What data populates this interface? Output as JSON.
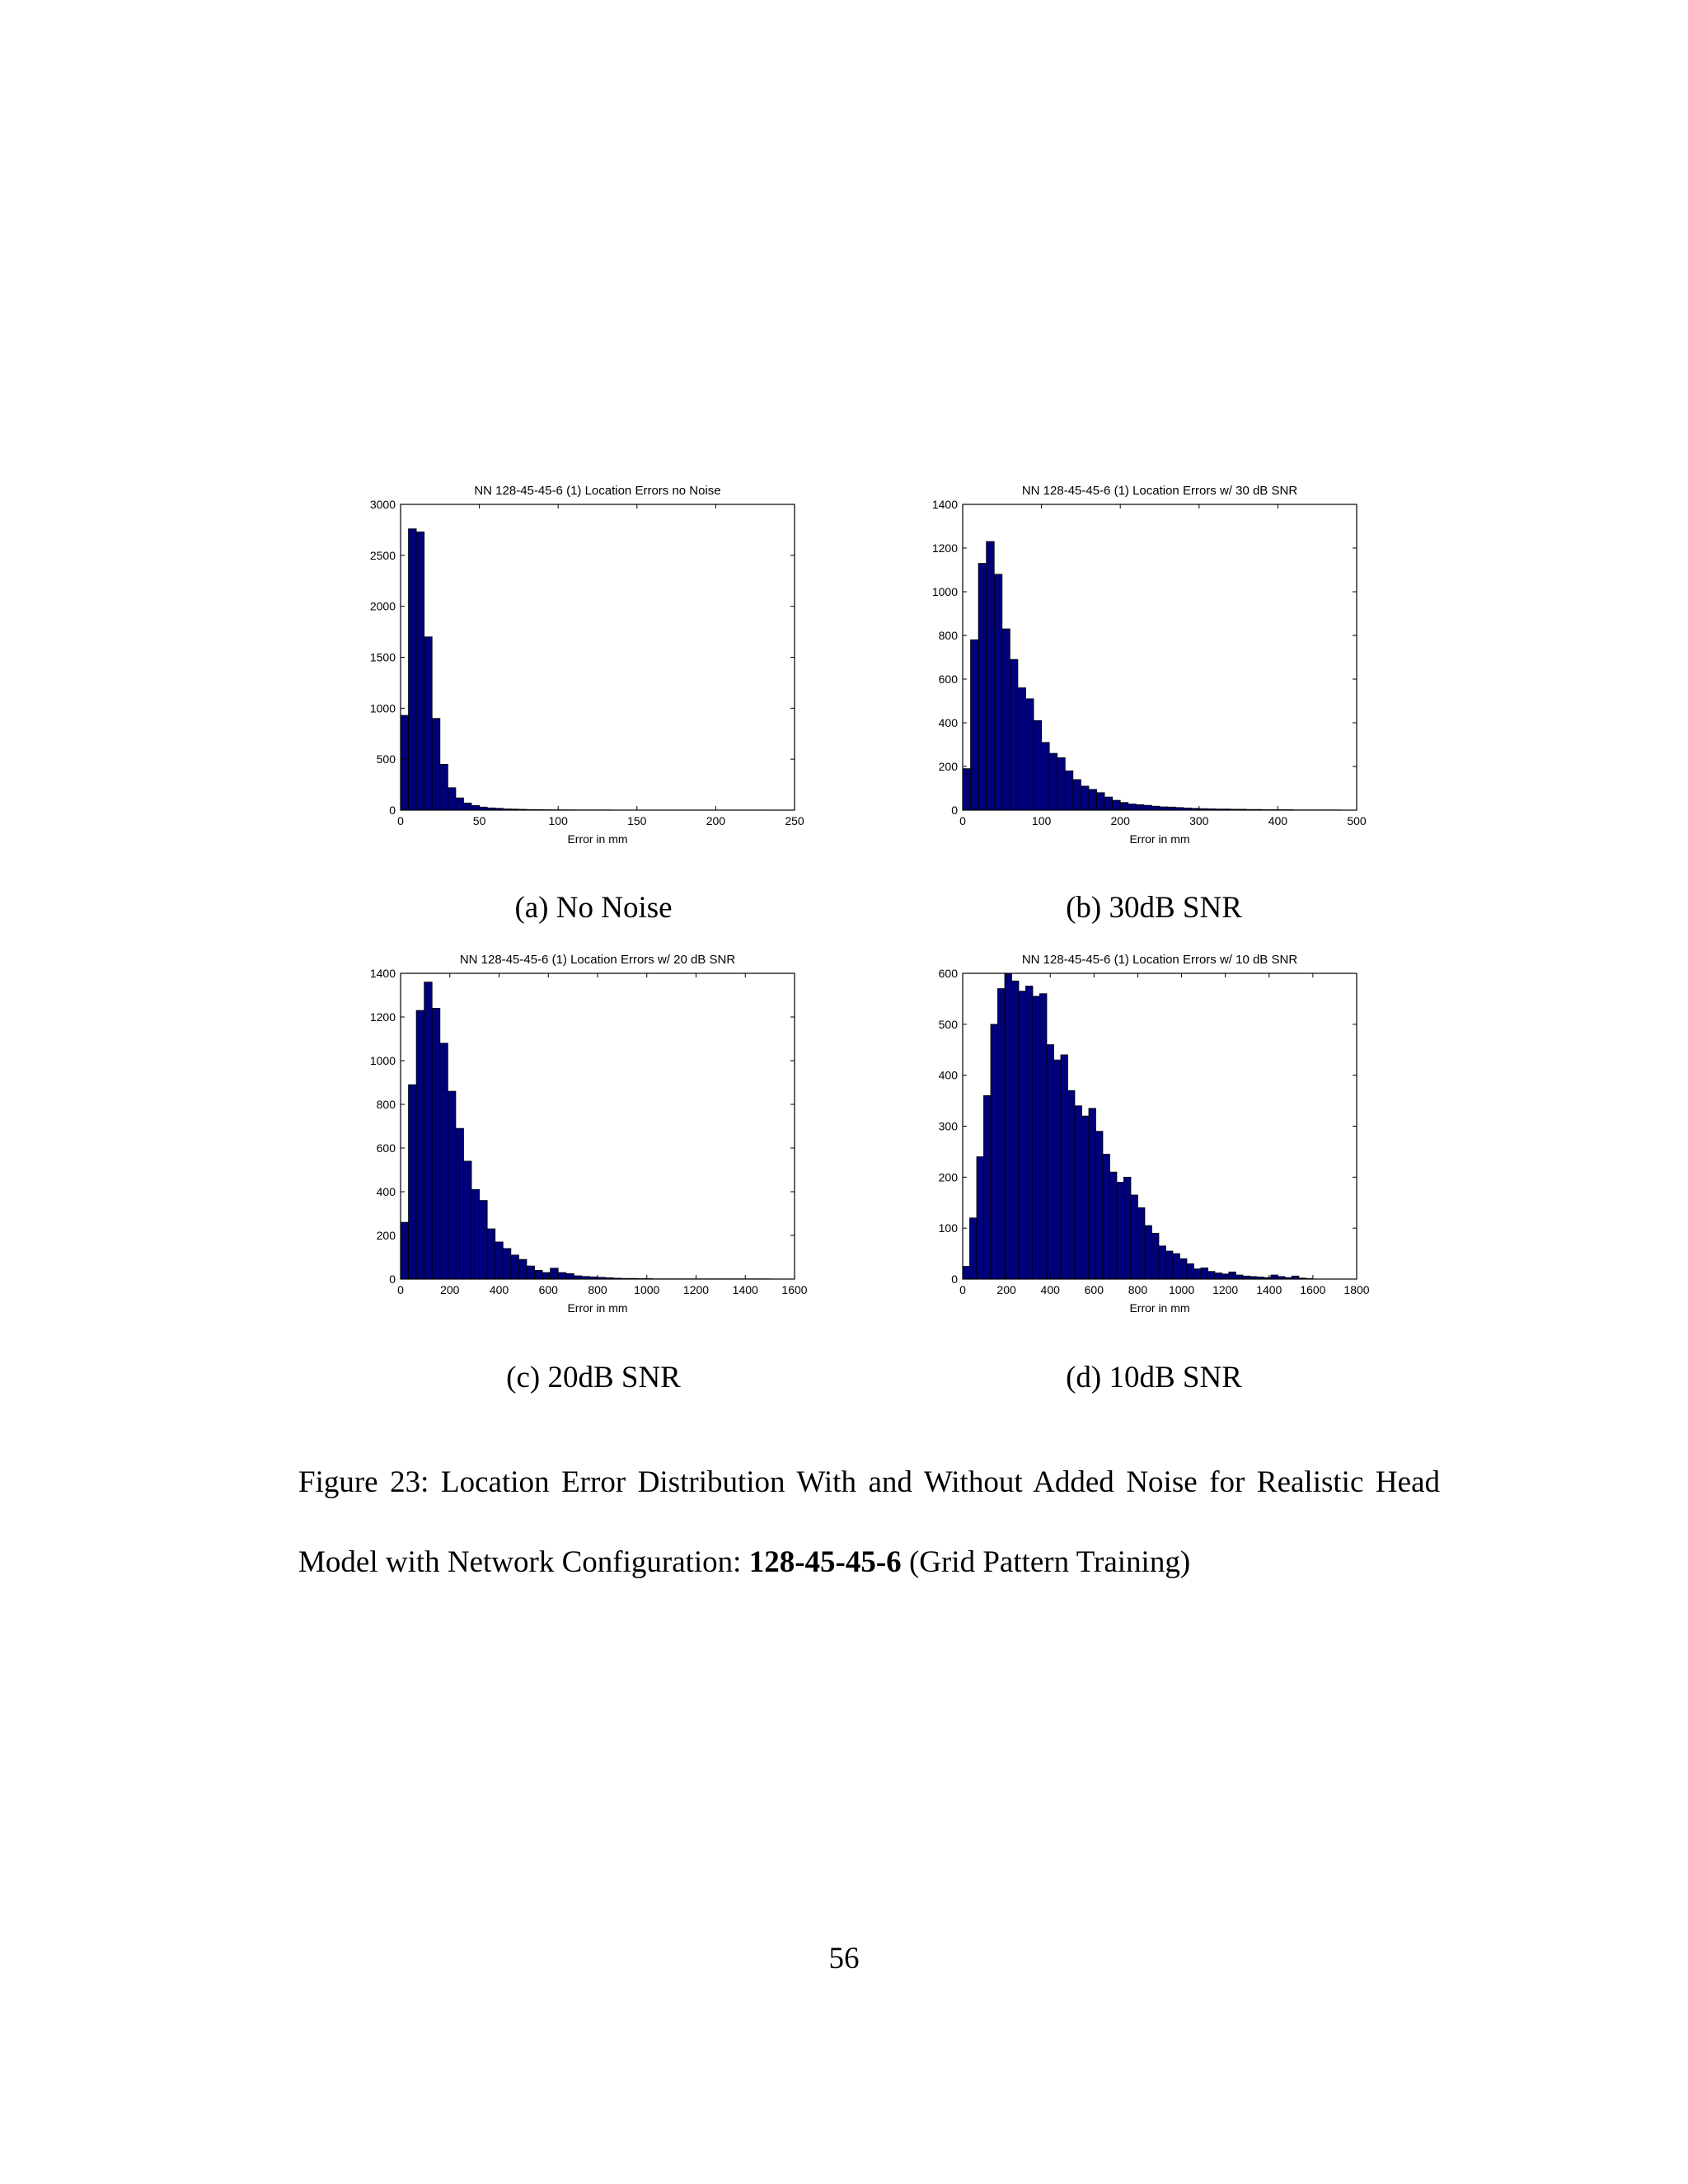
{
  "figure": {
    "caption_prefix": "Figure 23: ",
    "caption_text_1": "Location Error Distribution With and Without Added Noise for Realistic Head Model with Network Configuration: ",
    "caption_bold": "128-45-45-6",
    "caption_text_2": " (Grid Pattern Training)",
    "subcaptions": [
      "(a) No Noise",
      "(b) 30dB SNR",
      "(c) 20dB SNR",
      "(d) 10dB SNR"
    ]
  },
  "page_number": "56",
  "chart_data": [
    {
      "type": "bar",
      "title": "NN 128-45-45-6 (1) Location Errors no Noise",
      "xlabel": "Error in mm",
      "ylabel": "",
      "xlim": [
        0,
        250
      ],
      "ylim": [
        0,
        3000
      ],
      "xticks": [
        0,
        50,
        100,
        150,
        200,
        250
      ],
      "yticks": [
        0,
        500,
        1000,
        1500,
        2000,
        2500,
        3000
      ],
      "bin_start": 0,
      "bin_width": 5,
      "values": [
        930,
        2760,
        2730,
        1700,
        900,
        450,
        220,
        120,
        70,
        45,
        30,
        22,
        18,
        12,
        10,
        8,
        6,
        5,
        4,
        3,
        3,
        3,
        2,
        2,
        2,
        2,
        2,
        1,
        1,
        1,
        1,
        1,
        1,
        1,
        1,
        1,
        1,
        1,
        1,
        1,
        1,
        1,
        1,
        1,
        1,
        1,
        0,
        0,
        0,
        0
      ],
      "bar_color": "#00007a"
    },
    {
      "type": "bar",
      "title": "NN 128-45-45-6 (1) Location Errors w/ 30 dB SNR",
      "xlabel": "Error in mm",
      "ylabel": "",
      "xlim": [
        0,
        500
      ],
      "ylim": [
        0,
        1400
      ],
      "xticks": [
        0,
        100,
        200,
        300,
        400,
        500
      ],
      "yticks": [
        0,
        200,
        400,
        600,
        800,
        1000,
        1200,
        1400
      ],
      "bin_start": 0,
      "bin_width": 10,
      "values": [
        190,
        780,
        1130,
        1230,
        1080,
        830,
        690,
        560,
        510,
        410,
        310,
        260,
        240,
        180,
        140,
        110,
        95,
        80,
        60,
        45,
        35,
        28,
        25,
        22,
        18,
        15,
        14,
        12,
        10,
        8,
        7,
        6,
        5,
        5,
        4,
        4,
        3,
        3,
        2,
        2,
        2,
        2,
        1,
        1,
        1,
        1,
        1,
        1,
        0,
        0
      ],
      "bar_color": "#00007a"
    },
    {
      "type": "bar",
      "title": "NN 128-45-45-6 (1) Location Errors w/ 20 dB SNR",
      "xlabel": "Error in mm",
      "ylabel": "",
      "xlim": [
        0,
        1600
      ],
      "ylim": [
        0,
        1400
      ],
      "xticks": [
        0,
        200,
        400,
        600,
        800,
        1000,
        1200,
        1400,
        1600
      ],
      "yticks": [
        0,
        200,
        400,
        600,
        800,
        1000,
        1200,
        1400
      ],
      "bin_start": 0,
      "bin_width": 32,
      "values": [
        260,
        890,
        1230,
        1360,
        1240,
        1080,
        860,
        690,
        540,
        410,
        360,
        230,
        170,
        140,
        110,
        90,
        60,
        40,
        30,
        50,
        30,
        25,
        15,
        12,
        10,
        8,
        6,
        4,
        3,
        3,
        2,
        2,
        1,
        1,
        1,
        1,
        1,
        1,
        1,
        1,
        1,
        1,
        1,
        1,
        1,
        1,
        1,
        0,
        0,
        0
      ],
      "bar_color": "#00007a"
    },
    {
      "type": "bar",
      "title": "NN 128-45-45-6 (1) Location Errors w/ 10 dB SNR",
      "xlabel": "Error in mm",
      "ylabel": "",
      "xlim": [
        0,
        1800
      ],
      "ylim": [
        0,
        600
      ],
      "xticks": [
        0,
        200,
        400,
        600,
        800,
        1000,
        1200,
        1400,
        1600,
        1800
      ],
      "yticks": [
        0,
        100,
        200,
        300,
        400,
        500,
        600
      ],
      "bin_start": 0,
      "bin_width": 32,
      "values": [
        25,
        120,
        240,
        360,
        500,
        570,
        600,
        585,
        565,
        575,
        555,
        560,
        460,
        430,
        440,
        370,
        340,
        320,
        335,
        290,
        245,
        210,
        190,
        200,
        165,
        140,
        105,
        90,
        65,
        55,
        50,
        40,
        30,
        20,
        22,
        15,
        12,
        10,
        14,
        8,
        6,
        5,
        4,
        3,
        8,
        5,
        3,
        6,
        2,
        1
      ],
      "bar_color": "#00007a"
    }
  ]
}
